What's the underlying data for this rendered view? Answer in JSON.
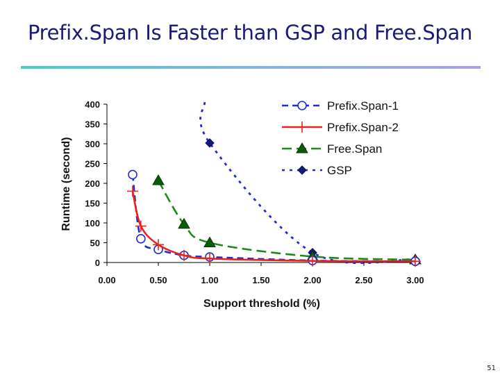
{
  "slide": {
    "title": "Prefix.Span Is Faster than GSP and Free.Span",
    "page_number": "51"
  },
  "chart_data": {
    "type": "line",
    "xlabel": "Support threshold (%)",
    "ylabel": "Runtime (second)",
    "xlim": [
      0,
      3
    ],
    "ylim": [
      0,
      400
    ],
    "x_ticks": [
      "0.00",
      "0.50",
      "1.00",
      "1.50",
      "2.00",
      "2.50",
      "3.00"
    ],
    "y_ticks": [
      "0",
      "50",
      "100",
      "150",
      "200",
      "250",
      "300",
      "350",
      "400"
    ],
    "grid": false,
    "legend_position": "top-right",
    "series": [
      {
        "name": "Prefix.Span-1",
        "color": "#1f2bd0",
        "line": "dashed",
        "marker": "open-circle",
        "points": [
          [
            0.25,
            222
          ],
          [
            0.33,
            60
          ],
          [
            0.5,
            33
          ],
          [
            0.75,
            18
          ],
          [
            1.0,
            14
          ],
          [
            2.0,
            5
          ],
          [
            3.0,
            3
          ]
        ]
      },
      {
        "name": "Prefix.Span-2",
        "color": "#e8231f",
        "line": "solid",
        "marker": "plus",
        "points": [
          [
            0.25,
            180
          ],
          [
            0.33,
            92
          ],
          [
            0.5,
            45
          ],
          [
            0.75,
            18
          ],
          [
            1.0,
            10
          ],
          [
            2.0,
            4
          ],
          [
            3.0,
            3
          ]
        ]
      },
      {
        "name": "Free.Span",
        "color": "#1a8a1a",
        "line": "long-dashed",
        "marker": "filled-triangle",
        "points": [
          [
            0.5,
            207
          ],
          [
            0.75,
            97
          ],
          [
            1.0,
            50
          ],
          [
            2.0,
            15
          ],
          [
            3.0,
            7
          ]
        ]
      },
      {
        "name": "GSP",
        "color": "#1f2bd0",
        "line": "dotted",
        "marker": "filled-diamond",
        "points": [
          [
            0.95,
            405
          ],
          [
            1.0,
            302
          ],
          [
            2.0,
            25
          ],
          [
            3.0,
            8
          ]
        ]
      }
    ]
  }
}
